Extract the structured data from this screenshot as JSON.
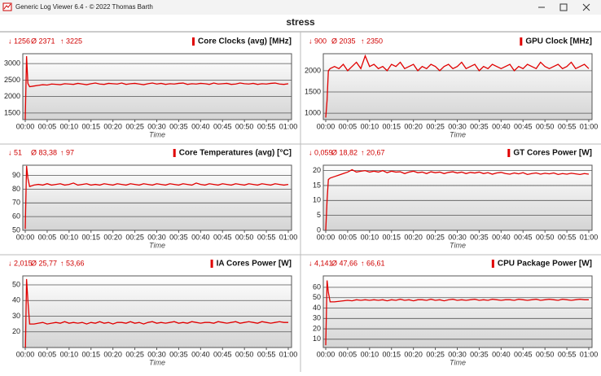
{
  "window_title": "Generic Log Viewer 6.4 - © 2022 Thomas Barth",
  "page_title": "stress",
  "chart_data": [
    {
      "type": "line",
      "title": "Core Clocks (avg) [MHz]",
      "stats": [
        "↓ 1256",
        "Ø 2371",
        "↑ 3225"
      ],
      "x_label": "Time",
      "x": [
        0,
        0.3,
        0.6,
        1,
        2,
        3,
        4,
        5,
        6,
        7,
        8,
        9,
        10,
        11,
        12,
        13,
        14,
        15,
        16,
        17,
        18,
        19,
        20,
        21,
        22,
        23,
        24,
        25,
        26,
        27,
        28,
        29,
        30,
        31,
        32,
        33,
        34,
        35,
        36,
        37,
        38,
        39,
        40,
        41,
        42,
        43,
        44,
        45,
        46,
        47,
        48,
        49,
        50,
        51,
        52,
        53,
        54,
        55,
        56,
        57,
        58,
        59,
        60
      ],
      "xlim": [
        0,
        60
      ],
      "xticks": [
        {
          "value": 0,
          "label": "00:00"
        },
        {
          "value": 5,
          "label": "00:05"
        },
        {
          "value": 10,
          "label": "00:10"
        },
        {
          "value": 15,
          "label": "00:15"
        },
        {
          "value": 20,
          "label": "00:20"
        },
        {
          "value": 25,
          "label": "00:25"
        },
        {
          "value": 30,
          "label": "00:30"
        },
        {
          "value": 35,
          "label": "00:35"
        },
        {
          "value": 40,
          "label": "00:40"
        },
        {
          "value": 45,
          "label": "00:45"
        },
        {
          "value": 50,
          "label": "00:50"
        },
        {
          "value": 55,
          "label": "00:55"
        },
        {
          "value": 60,
          "label": "01:00"
        }
      ],
      "ylim": [
        1300,
        3300
      ],
      "yticks": [
        1500,
        2000,
        2500,
        3000
      ],
      "series": [
        {
          "color": "#e00000",
          "values": [
            1300,
            3225,
            2400,
            2300,
            2320,
            2340,
            2360,
            2350,
            2380,
            2370,
            2360,
            2390,
            2380,
            2370,
            2400,
            2380,
            2360,
            2390,
            2410,
            2380,
            2370,
            2400,
            2390,
            2380,
            2410,
            2370,
            2390,
            2400,
            2380,
            2360,
            2390,
            2410,
            2380,
            2400,
            2370,
            2390,
            2380,
            2400,
            2410,
            2370,
            2390,
            2380,
            2400,
            2390,
            2370,
            2410,
            2380,
            2390,
            2400,
            2370,
            2380,
            2410,
            2390,
            2380,
            2400,
            2370,
            2390,
            2380,
            2400,
            2410,
            2380,
            2370,
            2390
          ]
        }
      ]
    },
    {
      "type": "line",
      "title": "GPU Clock [MHz]",
      "stats": [
        "↓ 900",
        "Ø 2035",
        "↑ 2350"
      ],
      "x_label": "Time",
      "x": [
        0,
        0.3,
        0.6,
        1,
        2,
        3,
        4,
        5,
        6,
        7,
        8,
        9,
        10,
        11,
        12,
        13,
        14,
        15,
        16,
        17,
        18,
        19,
        20,
        21,
        22,
        23,
        24,
        25,
        26,
        27,
        28,
        29,
        30,
        31,
        32,
        33,
        34,
        35,
        36,
        37,
        38,
        39,
        40,
        41,
        42,
        43,
        44,
        45,
        46,
        47,
        48,
        49,
        50,
        51,
        52,
        53,
        54,
        55,
        56,
        57,
        58,
        59,
        60
      ],
      "xlim": [
        0,
        60
      ],
      "xticks": [
        {
          "value": 0,
          "label": "00:00"
        },
        {
          "value": 5,
          "label": "00:05"
        },
        {
          "value": 10,
          "label": "00:10"
        },
        {
          "value": 15,
          "label": "00:15"
        },
        {
          "value": 20,
          "label": "00:20"
        },
        {
          "value": 25,
          "label": "00:25"
        },
        {
          "value": 30,
          "label": "00:30"
        },
        {
          "value": 35,
          "label": "00:35"
        },
        {
          "value": 40,
          "label": "00:40"
        },
        {
          "value": 45,
          "label": "00:45"
        },
        {
          "value": 50,
          "label": "00:50"
        },
        {
          "value": 55,
          "label": "00:55"
        },
        {
          "value": 60,
          "label": "01:00"
        }
      ],
      "ylim": [
        850,
        2400
      ],
      "yticks": [
        1000,
        1500,
        2000
      ],
      "series": [
        {
          "color": "#e00000",
          "values": [
            900,
            1300,
            2000,
            2050,
            2100,
            2050,
            2150,
            2000,
            2100,
            2200,
            2050,
            2350,
            2100,
            2150,
            2050,
            2100,
            2000,
            2150,
            2100,
            2200,
            2050,
            2100,
            2150,
            2000,
            2100,
            2050,
            2150,
            2100,
            2000,
            2100,
            2150,
            2050,
            2100,
            2200,
            2050,
            2100,
            2150,
            2000,
            2100,
            2050,
            2150,
            2100,
            2050,
            2100,
            2150,
            2000,
            2100,
            2050,
            2150,
            2100,
            2050,
            2200,
            2100,
            2050,
            2100,
            2150,
            2050,
            2100,
            2200,
            2050,
            2100,
            2150,
            2050
          ]
        }
      ]
    },
    {
      "type": "line",
      "title": "Core Temperatures (avg) [°C]",
      "stats": [
        "↓ 51",
        "Ø 83,38",
        "↑ 97"
      ],
      "x_label": "Time",
      "x": [
        0,
        0.3,
        0.6,
        1,
        2,
        3,
        4,
        5,
        6,
        7,
        8,
        9,
        10,
        11,
        12,
        13,
        14,
        15,
        16,
        17,
        18,
        19,
        20,
        21,
        22,
        23,
        24,
        25,
        26,
        27,
        28,
        29,
        30,
        31,
        32,
        33,
        34,
        35,
        36,
        37,
        38,
        39,
        40,
        41,
        42,
        43,
        44,
        45,
        46,
        47,
        48,
        49,
        50,
        51,
        52,
        53,
        54,
        55,
        56,
        57,
        58,
        59,
        60
      ],
      "xlim": [
        0,
        60
      ],
      "xticks": [
        {
          "value": 0,
          "label": "00:00"
        },
        {
          "value": 5,
          "label": "00:05"
        },
        {
          "value": 10,
          "label": "00:10"
        },
        {
          "value": 15,
          "label": "00:15"
        },
        {
          "value": 20,
          "label": "00:20"
        },
        {
          "value": 25,
          "label": "00:25"
        },
        {
          "value": 30,
          "label": "00:30"
        },
        {
          "value": 35,
          "label": "00:35"
        },
        {
          "value": 40,
          "label": "00:40"
        },
        {
          "value": 45,
          "label": "00:45"
        },
        {
          "value": 50,
          "label": "00:50"
        },
        {
          "value": 55,
          "label": "00:55"
        },
        {
          "value": 60,
          "label": "01:00"
        }
      ],
      "ylim": [
        50,
        97.5
      ],
      "yticks": [
        50,
        60,
        70,
        80,
        90
      ],
      "series": [
        {
          "color": "#e00000",
          "values": [
            51,
            97,
            88,
            82,
            83,
            83.5,
            83,
            84,
            83,
            83.5,
            84,
            83,
            83.5,
            84.5,
            83,
            83.5,
            84,
            83,
            83.5,
            83,
            84,
            83.5,
            83,
            84,
            83.5,
            83,
            84,
            83.5,
            83,
            84,
            83.5,
            83,
            84,
            83.5,
            83,
            84,
            83.5,
            83,
            84,
            83.5,
            83,
            84.5,
            83.5,
            83,
            84,
            83.5,
            83,
            84,
            83.5,
            83,
            84,
            83.5,
            83,
            84,
            83.5,
            83,
            84,
            83.5,
            83,
            84,
            83.5,
            83,
            83.5
          ]
        }
      ]
    },
    {
      "type": "line",
      "title": "GT Cores Power [W]",
      "stats": [
        "↓ 0,059",
        "Ø 18,82",
        "↑ 20,67"
      ],
      "x_label": "Time",
      "x": [
        0,
        0.3,
        0.6,
        1,
        2,
        3,
        4,
        5,
        6,
        7,
        8,
        9,
        10,
        11,
        12,
        13,
        14,
        15,
        16,
        17,
        18,
        19,
        20,
        21,
        22,
        23,
        24,
        25,
        26,
        27,
        28,
        29,
        30,
        31,
        32,
        33,
        34,
        35,
        36,
        37,
        38,
        39,
        40,
        41,
        42,
        43,
        44,
        45,
        46,
        47,
        48,
        49,
        50,
        51,
        52,
        53,
        54,
        55,
        56,
        57,
        58,
        59,
        60
      ],
      "xlim": [
        0,
        60
      ],
      "xticks": [
        {
          "value": 0,
          "label": "00:00"
        },
        {
          "value": 5,
          "label": "00:05"
        },
        {
          "value": 10,
          "label": "00:10"
        },
        {
          "value": 15,
          "label": "00:15"
        },
        {
          "value": 20,
          "label": "00:20"
        },
        {
          "value": 25,
          "label": "00:25"
        },
        {
          "value": 30,
          "label": "00:30"
        },
        {
          "value": 35,
          "label": "00:35"
        },
        {
          "value": 40,
          "label": "00:40"
        },
        {
          "value": 45,
          "label": "00:45"
        },
        {
          "value": 50,
          "label": "00:50"
        },
        {
          "value": 55,
          "label": "00:55"
        },
        {
          "value": 60,
          "label": "01:00"
        }
      ],
      "ylim": [
        0,
        21.8
      ],
      "yticks": [
        0,
        5,
        10,
        15,
        20
      ],
      "series": [
        {
          "color": "#e00000",
          "values": [
            0.059,
            10,
            17,
            17.5,
            18,
            18.5,
            19,
            19.5,
            20.3,
            19.5,
            19.8,
            20,
            19.5,
            19.8,
            19.5,
            20,
            19.3,
            19.8,
            19.5,
            19.6,
            19,
            19.5,
            19.8,
            19.3,
            19.5,
            19,
            19.6,
            19.3,
            19.5,
            19,
            19.4,
            19.6,
            19.2,
            19.5,
            19,
            19.4,
            19.2,
            19.5,
            19,
            19.3,
            18.8,
            19.2,
            19.4,
            19,
            18.8,
            19.2,
            18.9,
            19.3,
            18.7,
            19,
            19.2,
            18.8,
            19.1,
            18.9,
            19.2,
            18.7,
            19,
            18.8,
            19.1,
            18.9,
            18.7,
            19,
            18.8
          ]
        }
      ]
    },
    {
      "type": "line",
      "title": "IA Cores Power [W]",
      "stats": [
        "↓ 2,015",
        "Ø 25,77",
        "↑ 53,66"
      ],
      "x_label": "Time",
      "x": [
        0,
        0.3,
        0.6,
        1,
        2,
        3,
        4,
        5,
        6,
        7,
        8,
        9,
        10,
        11,
        12,
        13,
        14,
        15,
        16,
        17,
        18,
        19,
        20,
        21,
        22,
        23,
        24,
        25,
        26,
        27,
        28,
        29,
        30,
        31,
        32,
        33,
        34,
        35,
        36,
        37,
        38,
        39,
        40,
        41,
        42,
        43,
        44,
        45,
        46,
        47,
        48,
        49,
        50,
        51,
        52,
        53,
        54,
        55,
        56,
        57,
        58,
        59,
        60
      ],
      "xlim": [
        0,
        60
      ],
      "xticks": [
        {
          "value": 0,
          "label": "00:00"
        },
        {
          "value": 5,
          "label": "00:05"
        },
        {
          "value": 10,
          "label": "00:10"
        },
        {
          "value": 15,
          "label": "00:15"
        },
        {
          "value": 20,
          "label": "00:20"
        },
        {
          "value": 25,
          "label": "00:25"
        },
        {
          "value": 30,
          "label": "00:30"
        },
        {
          "value": 35,
          "label": "00:35"
        },
        {
          "value": 40,
          "label": "00:40"
        },
        {
          "value": 45,
          "label": "00:45"
        },
        {
          "value": 50,
          "label": "00:50"
        },
        {
          "value": 55,
          "label": "00:55"
        },
        {
          "value": 60,
          "label": "01:00"
        }
      ],
      "ylim": [
        10,
        55.7
      ],
      "yticks": [
        20,
        30,
        40,
        50
      ],
      "series": [
        {
          "color": "#e00000",
          "values": [
            2.015,
            53.66,
            40,
            25,
            25,
            25.5,
            26,
            25,
            25.5,
            26,
            25.5,
            26.5,
            25.5,
            26,
            25.5,
            26,
            25,
            26,
            25.5,
            26.5,
            25.5,
            26,
            25,
            26,
            26,
            25.5,
            26.5,
            25.5,
            26,
            25,
            26,
            26.5,
            25.5,
            26,
            25.5,
            26,
            26.5,
            25.5,
            26,
            25.5,
            26.5,
            26,
            25.5,
            26,
            26,
            25.5,
            26.5,
            26,
            25.5,
            26,
            26.5,
            25.5,
            26,
            26.5,
            26,
            25.5,
            26.5,
            26,
            25.5,
            26,
            26.5,
            26,
            26
          ]
        }
      ]
    },
    {
      "type": "line",
      "title": "CPU Package Power [W]",
      "stats": [
        "↓ 4,141",
        "Ø 47,66",
        "↑ 66,61"
      ],
      "x_label": "Time",
      "x": [
        0,
        0.3,
        0.6,
        1,
        2,
        3,
        4,
        5,
        6,
        7,
        8,
        9,
        10,
        11,
        12,
        13,
        14,
        15,
        16,
        17,
        18,
        19,
        20,
        21,
        22,
        23,
        24,
        25,
        26,
        27,
        28,
        29,
        30,
        31,
        32,
        33,
        34,
        35,
        36,
        37,
        38,
        39,
        40,
        41,
        42,
        43,
        44,
        45,
        46,
        47,
        48,
        49,
        50,
        51,
        52,
        53,
        54,
        55,
        56,
        57,
        58,
        59,
        60
      ],
      "xlim": [
        0,
        60
      ],
      "xticks": [
        {
          "value": 0,
          "label": "00:00"
        },
        {
          "value": 5,
          "label": "00:05"
        },
        {
          "value": 10,
          "label": "00:10"
        },
        {
          "value": 15,
          "label": "00:15"
        },
        {
          "value": 20,
          "label": "00:20"
        },
        {
          "value": 25,
          "label": "00:25"
        },
        {
          "value": 30,
          "label": "00:30"
        },
        {
          "value": 35,
          "label": "00:35"
        },
        {
          "value": 40,
          "label": "00:40"
        },
        {
          "value": 45,
          "label": "00:45"
        },
        {
          "value": 50,
          "label": "00:50"
        },
        {
          "value": 55,
          "label": "00:55"
        },
        {
          "value": 60,
          "label": "01:00"
        }
      ],
      "ylim": [
        2,
        71
      ],
      "yticks": [
        10,
        20,
        30,
        40,
        50,
        60
      ],
      "series": [
        {
          "color": "#e00000",
          "values": [
            4.141,
            66.61,
            55,
            46,
            46,
            46.5,
            47,
            47.5,
            47,
            48,
            47.5,
            48,
            47.5,
            48,
            47.5,
            48,
            47,
            48,
            47.5,
            48.5,
            47.5,
            48,
            47,
            48,
            48,
            47.5,
            48.5,
            47.5,
            48,
            47,
            48,
            48.5,
            47.5,
            48,
            47.5,
            48,
            48.5,
            47.5,
            48,
            47.5,
            48.5,
            48,
            47.5,
            48,
            48,
            47.5,
            48.5,
            48,
            47.5,
            48,
            48.5,
            47.5,
            48,
            48.5,
            48,
            47.5,
            48.5,
            48,
            47.5,
            48,
            48.5,
            48,
            48
          ]
        }
      ]
    }
  ]
}
